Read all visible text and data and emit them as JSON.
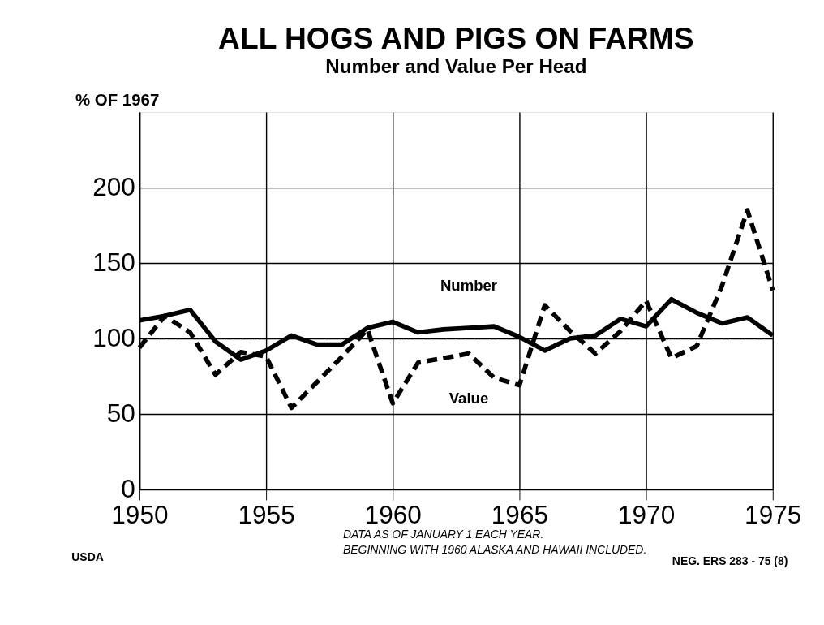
{
  "chart_data": {
    "type": "line",
    "title": "ALL HOGS AND PIGS ON FARMS",
    "subtitle": "Number and Value Per Head",
    "ylabel": "% OF 1967",
    "x": [
      1950,
      1951,
      1952,
      1953,
      1954,
      1955,
      1956,
      1957,
      1958,
      1959,
      1960,
      1961,
      1962,
      1963,
      1964,
      1965,
      1966,
      1967,
      1968,
      1969,
      1970,
      1971,
      1972,
      1973,
      1974,
      1975
    ],
    "series": [
      {
        "name": "Number",
        "color": "#000000",
        "line_style": "solid",
        "values": [
          112,
          115,
          119,
          98,
          86,
          92,
          102,
          96,
          96,
          107,
          111,
          104,
          106,
          107,
          108,
          101,
          92,
          100,
          102,
          113,
          108,
          126,
          117,
          110,
          114,
          102
        ]
      },
      {
        "name": "Value",
        "color": "#000000",
        "line_style": "dashed",
        "values": [
          94,
          115,
          104,
          76,
          91,
          88,
          54,
          71,
          88,
          106,
          57,
          84,
          87,
          90,
          74,
          69,
          122,
          105,
          90,
          105,
          125,
          87,
          95,
          135,
          185,
          132
        ]
      }
    ],
    "xlim": [
      1950,
      1975
    ],
    "xticks": [
      1950,
      1955,
      1960,
      1965,
      1970,
      1975
    ],
    "ylim": [
      0,
      250
    ],
    "yticks": [
      0,
      50,
      100,
      150,
      200
    ],
    "grid": true,
    "marker": "none",
    "ref_lines": [
      {
        "axis": "y",
        "value": 100,
        "line_style": "dashed",
        "color": "#000000"
      }
    ],
    "annotations": [
      "DATA AS OF JANUARY 1 EACH YEAR.",
      "BEGINNING WITH 1960 ALASKA AND HAWAII INCLUDED.",
      "USDA",
      "NEG. ERS 283 - 75 (8)"
    ]
  }
}
